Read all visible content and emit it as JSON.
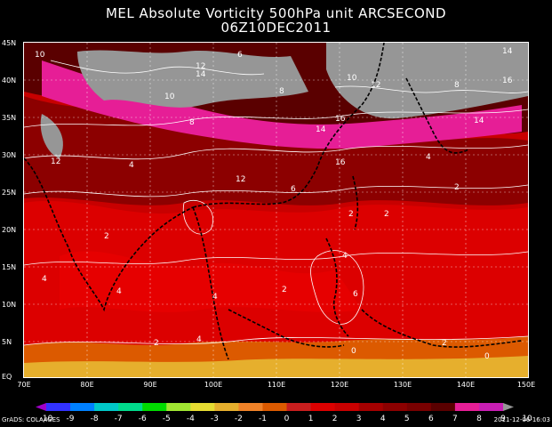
{
  "title": "MEL Absolute Vorticity 500hPa unit ARCSECOND",
  "subtitle": "06Z10DEC2011",
  "lat_ticks": [
    "45N",
    "40N",
    "35N",
    "30N",
    "25N",
    "20N",
    "15N",
    "10N",
    "5N",
    "EQ"
  ],
  "lon_ticks": [
    "70E",
    "80E",
    "90E",
    "100E",
    "110E",
    "120E",
    "130E",
    "140E",
    "150E"
  ],
  "colorbar": {
    "labels": [
      "-10",
      "-9",
      "-8",
      "-7",
      "-6",
      "-5",
      "-4",
      "-3",
      "-2",
      "-1",
      "0",
      "1",
      "2",
      "3",
      "4",
      "5",
      "6",
      "7",
      "8",
      "9",
      "10"
    ],
    "colors": [
      "#a000c8",
      "#3232ff",
      "#0080ff",
      "#00c8c8",
      "#00dc8c",
      "#00dc00",
      "#a0e632",
      "#e6dc32",
      "#e6af2d",
      "#f08228",
      "#dc5a00",
      "#c81e1e",
      "#dc0000",
      "#c80000",
      "#a50000",
      "#8c0000",
      "#780000",
      "#5a0000",
      "#e61e96",
      "#c81eb4",
      "#969696"
    ]
  },
  "contour_labels": [
    {
      "text": "10"
    },
    {
      "text": "12"
    },
    {
      "text": "14"
    },
    {
      "text": "6"
    },
    {
      "text": "8"
    },
    {
      "text": "10"
    },
    {
      "text": "12"
    },
    {
      "text": "14"
    },
    {
      "text": "16"
    },
    {
      "text": "8"
    },
    {
      "text": "10"
    },
    {
      "text": "12"
    },
    {
      "text": "14"
    },
    {
      "text": "16"
    },
    {
      "text": "16"
    },
    {
      "text": "14"
    },
    {
      "text": "8"
    },
    {
      "text": "4"
    },
    {
      "text": "12"
    },
    {
      "text": "6"
    },
    {
      "text": "4"
    },
    {
      "text": "2"
    },
    {
      "text": "2"
    },
    {
      "text": "4"
    },
    {
      "text": "4"
    },
    {
      "text": "2"
    },
    {
      "text": "2"
    },
    {
      "text": "0"
    },
    {
      "text": "0"
    },
    {
      "text": "4"
    },
    {
      "text": "2"
    },
    {
      "text": "6"
    },
    {
      "text": "2"
    },
    {
      "text": "4"
    },
    {
      "text": "2"
    },
    {
      "text": "4"
    }
  ],
  "footer_left": "GrADS: COLA/IGES",
  "footer_right": "2011-12-06-16:03"
}
